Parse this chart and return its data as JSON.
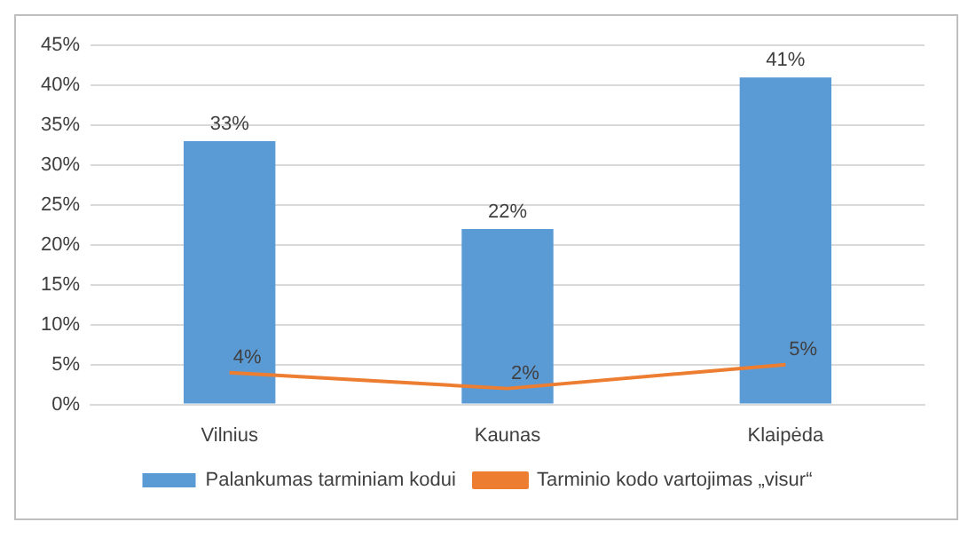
{
  "chart_data": {
    "type": "bar",
    "categories": [
      "Vilnius",
      "Kaunas",
      "Klaipėda"
    ],
    "series": [
      {
        "name": "Palankumas tarminiam kodui",
        "color": "#5b9bd5",
        "values": [
          33,
          22,
          41
        ],
        "value_labels": [
          "33%",
          "22%",
          "41%"
        ]
      },
      {
        "name": "Tarminio kodo vartojimas „visur“",
        "type": "line",
        "color": "#ed7d31",
        "values": [
          4,
          2,
          5
        ],
        "value_labels": [
          "4%",
          "2%",
          "5%"
        ]
      }
    ],
    "ylim": [
      0,
      45
    ],
    "yticks": [
      {
        "value": 0,
        "label": "0%"
      },
      {
        "value": 5,
        "label": "5%"
      },
      {
        "value": 10,
        "label": "10%"
      },
      {
        "value": 15,
        "label": "15%"
      },
      {
        "value": 20,
        "label": "20%"
      },
      {
        "value": 25,
        "label": "25%"
      },
      {
        "value": 30,
        "label": "30%"
      },
      {
        "value": 35,
        "label": "35%"
      },
      {
        "value": 40,
        "label": "40%"
      },
      {
        "value": 45,
        "label": "45%"
      }
    ],
    "grid": "y",
    "legend": "bottom",
    "marker": "none"
  }
}
